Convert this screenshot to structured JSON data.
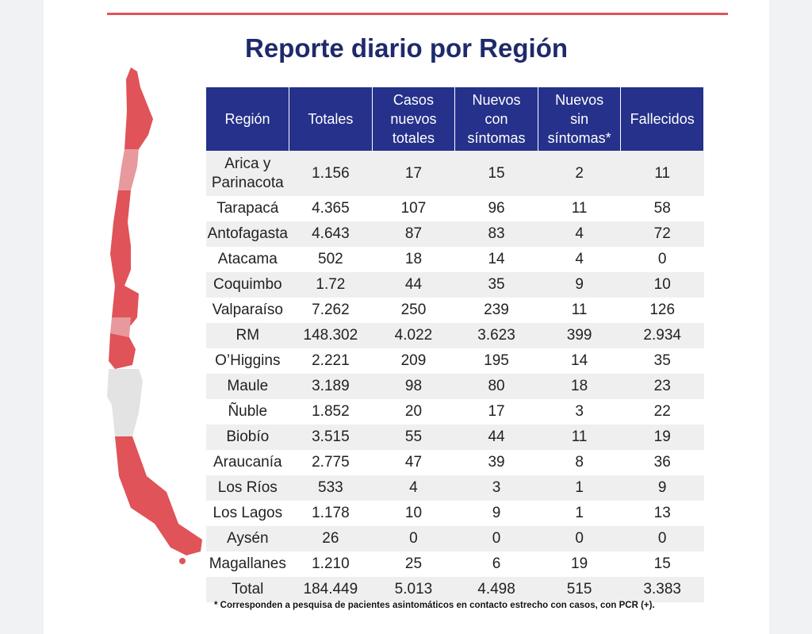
{
  "title": "Reporte diario por Región",
  "table": {
    "header": [
      "Región",
      "Totales",
      "Casos\nnuevos\ntotales",
      "Nuevos\ncon\nsíntomas",
      "Nuevos\nsin\nsíntomas*",
      "Fallecidos"
    ],
    "rows": [
      [
        "Arica y\nParinacota",
        "1.156",
        "17",
        "15",
        "2",
        "11"
      ],
      [
        "Tarapacá",
        "4.365",
        "107",
        "96",
        "11",
        "58"
      ],
      [
        "Antofagasta",
        "4.643",
        "87",
        "83",
        "4",
        "72"
      ],
      [
        "Atacama",
        "502",
        "18",
        "14",
        "4",
        "0"
      ],
      [
        "Coquimbo",
        "1.72",
        "44",
        "35",
        "9",
        "10"
      ],
      [
        "Valparaíso",
        "7.262",
        "250",
        "239",
        "11",
        "126"
      ],
      [
        "RM",
        "148.302",
        "4.022",
        "3.623",
        "399",
        "2.934"
      ],
      [
        "O’Higgins",
        "2.221",
        "209",
        "195",
        "14",
        "35"
      ],
      [
        "Maule",
        "3.189",
        "98",
        "80",
        "18",
        "23"
      ],
      [
        "Ñuble",
        "1.852",
        "20",
        "17",
        "3",
        "22"
      ],
      [
        "Biobío",
        "3.515",
        "55",
        "44",
        "11",
        "19"
      ],
      [
        "Araucanía",
        "2.775",
        "47",
        "39",
        "8",
        "36"
      ],
      [
        "Los Ríos",
        "533",
        "4",
        "3",
        "1",
        "9"
      ],
      [
        "Los Lagos",
        "1.178",
        "10",
        "9",
        "1",
        "13"
      ],
      [
        "Aysén",
        "26",
        "0",
        "0",
        "0",
        "0"
      ],
      [
        "Magallanes",
        "1.210",
        "25",
        "6",
        "19",
        "15"
      ],
      [
        "Total",
        "184.449",
        "5.013",
        "4.498",
        "515",
        "3.383"
      ]
    ]
  },
  "footnote": "* Corresponden a pesquisa de pacientes asintomáticos en contacto estrecho con casos, con PCR (+)."
}
